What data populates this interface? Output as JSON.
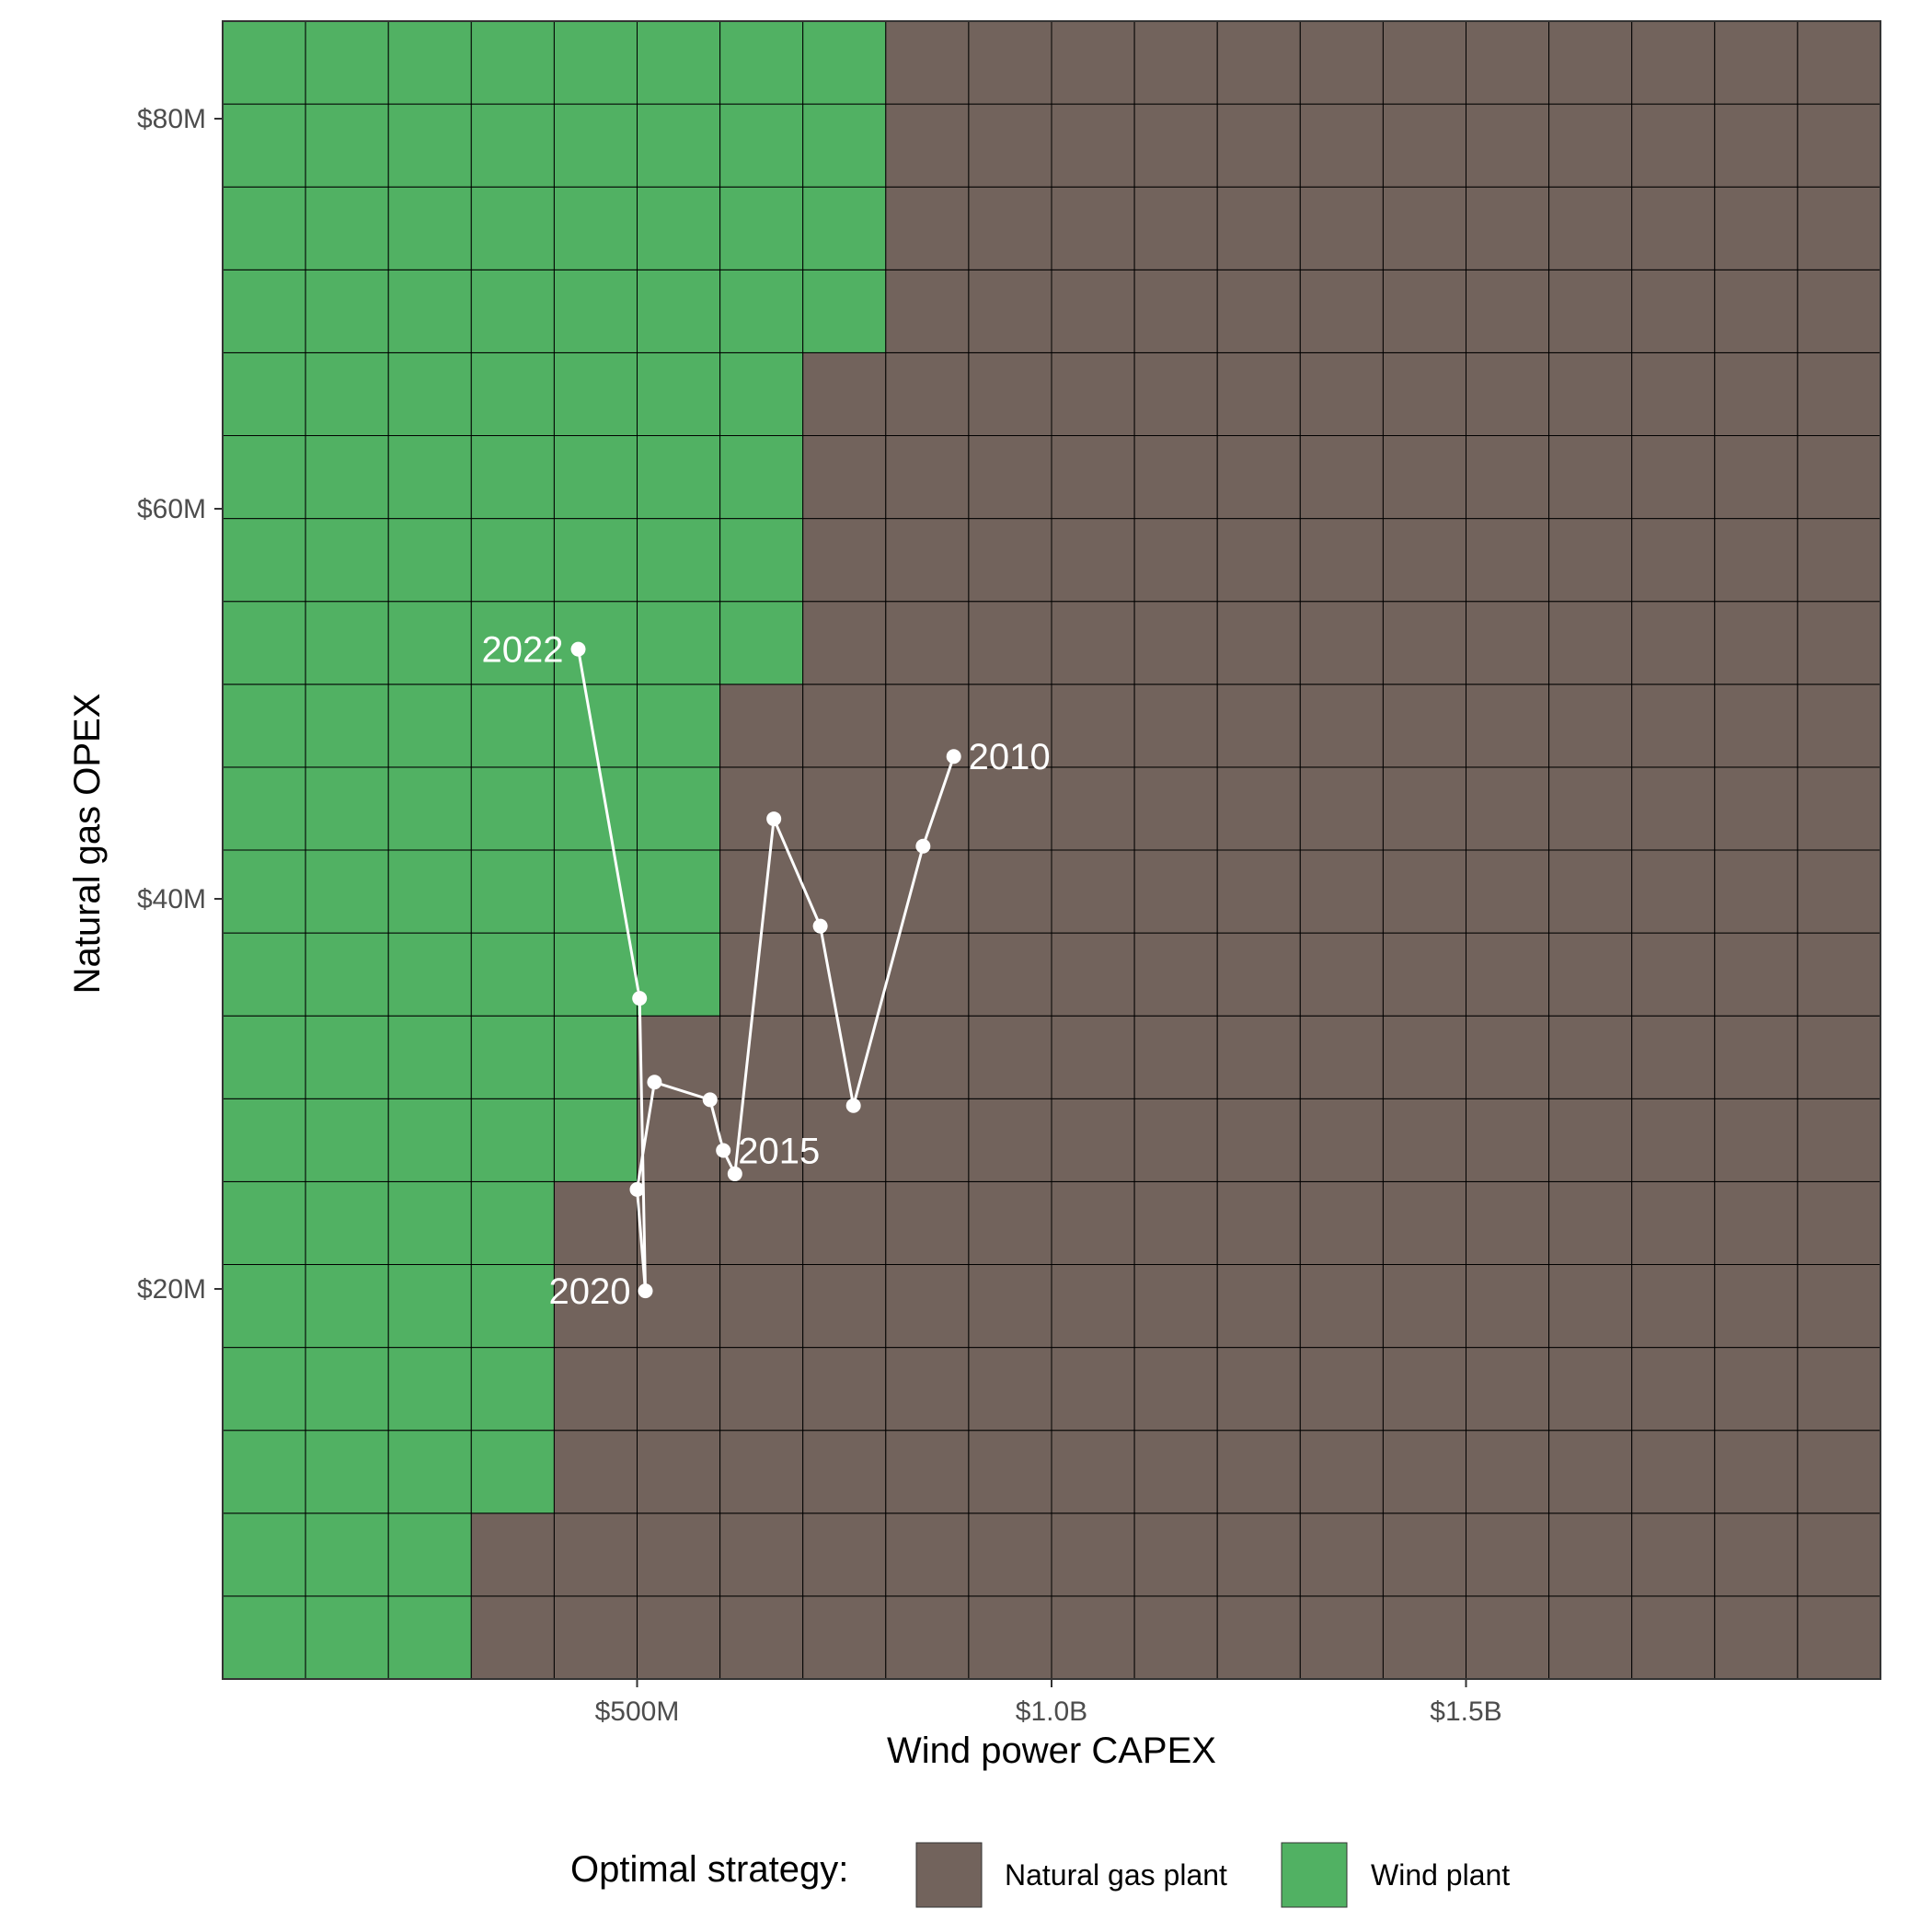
{
  "chart_data": {
    "type": "heatmap",
    "xlabel": "Wind power CAPEX",
    "ylabel": "Natural gas OPEX",
    "x_ticks": [
      {
        "value": 500,
        "label": "$500M"
      },
      {
        "value": 1000,
        "label": "$1.0B"
      },
      {
        "value": 1500,
        "label": "$1.5B"
      }
    ],
    "y_ticks": [
      {
        "value": 20,
        "label": "$20M"
      },
      {
        "value": 40,
        "label": "$40M"
      },
      {
        "value": 60,
        "label": "$60M"
      },
      {
        "value": 80,
        "label": "$80M"
      }
    ],
    "xlim": [
      0,
      2000
    ],
    "ylim": [
      0,
      85
    ],
    "grid_tiles": {
      "x_min": 0,
      "x_step": 100,
      "n_cols": 20,
      "y_min": 0,
      "y_step": 4.25,
      "n_rows": 20,
      "wind_cols_by_row_from_bottom": [
        3,
        3,
        4,
        4,
        4,
        4,
        5,
        5,
        6,
        6,
        6,
        6,
        7,
        7,
        7,
        7,
        8,
        8,
        8,
        8
      ]
    },
    "fills": {
      "natural_gas": "#72635c",
      "wind": "#51b163"
    },
    "legend": {
      "title": "Optimal strategy:",
      "items": [
        {
          "label": "Natural gas plant",
          "color": "#72635c"
        },
        {
          "label": "Wind plant",
          "color": "#51b163"
        }
      ]
    },
    "series": [
      {
        "name": "observed",
        "color": "#ffffff",
        "points": [
          {
            "x": 882,
            "y": 47.3,
            "label": "2010"
          },
          {
            "x": 845,
            "y": 42.7,
            "label": ""
          },
          {
            "x": 761,
            "y": 29.4,
            "label": ""
          },
          {
            "x": 721,
            "y": 38.6,
            "label": ""
          },
          {
            "x": 665,
            "y": 44.1,
            "label": ""
          },
          {
            "x": 618,
            "y": 25.9,
            "label": ""
          },
          {
            "x": 604,
            "y": 27.1,
            "label": "2015"
          },
          {
            "x": 588,
            "y": 29.7,
            "label": ""
          },
          {
            "x": 521,
            "y": 30.6,
            "label": ""
          },
          {
            "x": 500,
            "y": 25.1,
            "label": ""
          },
          {
            "x": 510,
            "y": 19.9,
            "label": "2020"
          },
          {
            "x": 503,
            "y": 34.9,
            "label": ""
          },
          {
            "x": 429,
            "y": 52.8,
            "label": "2022"
          }
        ]
      }
    ]
  }
}
